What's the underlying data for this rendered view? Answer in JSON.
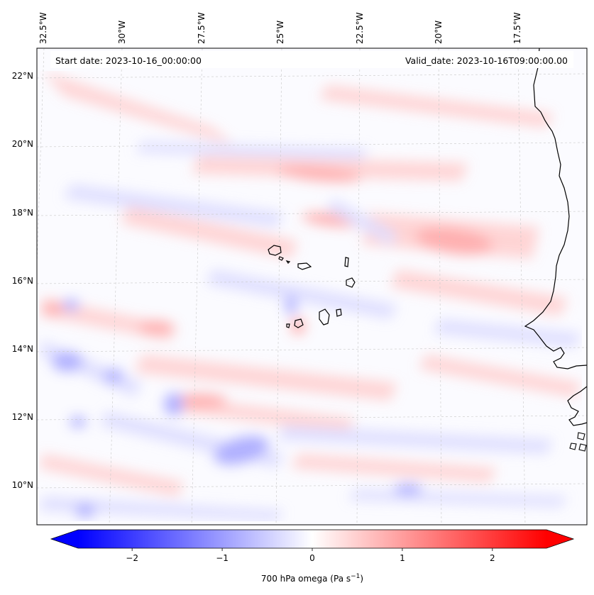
{
  "header": {
    "start_date": "Start date: 2023-10-16_00:00:00",
    "valid_date": "Valid_date: 2023-10-16T09:00:00.00"
  },
  "map": {
    "lon_labels": [
      "32.5°W",
      "30°W",
      "27.5°W",
      "25°W",
      "22.5°W",
      "20°W",
      "17.5°W"
    ],
    "lat_labels": [
      "22°N",
      "20°N",
      "18°N",
      "16°N",
      "14°N",
      "12°N",
      "10°N"
    ],
    "gridlines": "dashed",
    "coastline_color": "#000000",
    "field": "700 hPa omega",
    "colormap": "bwr"
  },
  "colorbar": {
    "ticks": [
      "−2",
      "−1",
      "0",
      "1",
      "2"
    ],
    "tick_values": [
      -2,
      -1,
      0,
      1,
      2
    ],
    "vmin": -2.6,
    "vmax": 2.6,
    "extend": "both",
    "label_main": "700 hPa omega (Pa s",
    "label_exp": "−1",
    "label_end": ")",
    "color_low": "#0000ff",
    "color_mid": "#ffffff",
    "color_high": "#ff0000"
  }
}
